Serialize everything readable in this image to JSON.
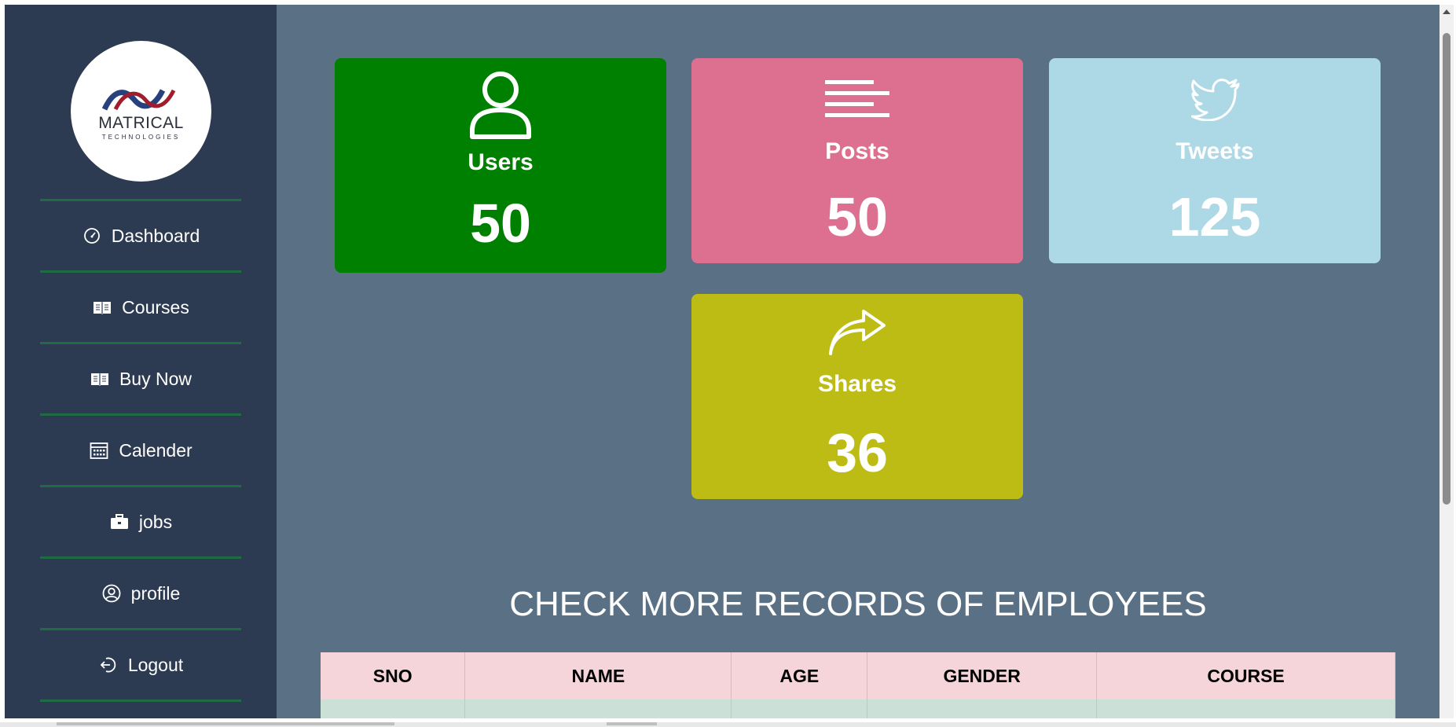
{
  "brand": {
    "name": "MATRICAL",
    "tagline": "TECHNOLOGIES"
  },
  "sidebar": {
    "items": [
      {
        "label": "Dashboard",
        "icon": "speedometer-icon"
      },
      {
        "label": "Courses",
        "icon": "book-icon"
      },
      {
        "label": "Buy Now",
        "icon": "open-book-icon"
      },
      {
        "label": "Calender",
        "icon": "calendar-icon"
      },
      {
        "label": "jobs",
        "icon": "briefcase-icon"
      },
      {
        "label": "profile",
        "icon": "user-circle-icon"
      },
      {
        "label": "Logout",
        "icon": "logout-icon"
      }
    ]
  },
  "cards": {
    "users": {
      "label": "Users",
      "value": "50",
      "icon": "user-icon",
      "color": "#008000"
    },
    "posts": {
      "label": "Posts",
      "value": "50",
      "icon": "lines-icon",
      "color": "#dd7090"
    },
    "tweets": {
      "label": "Tweets",
      "value": "125",
      "icon": "twitter-icon",
      "color": "#add8e6"
    },
    "shares": {
      "label": "Shares",
      "value": "36",
      "icon": "share-icon",
      "color": "#bdbc14"
    }
  },
  "records": {
    "title": "CHECK MORE RECORDS OF EMPLOYEES",
    "columns": [
      "SNO",
      "NAME",
      "AGE",
      "GENDER",
      "COURSE"
    ]
  },
  "colors": {
    "sidebar_bg": "#2c3b52",
    "main_bg": "#5a7185",
    "nav_divider": "#1f6b44",
    "table_header_bg": "#f6d5da",
    "table_row_bg": "#cbe1d8"
  }
}
